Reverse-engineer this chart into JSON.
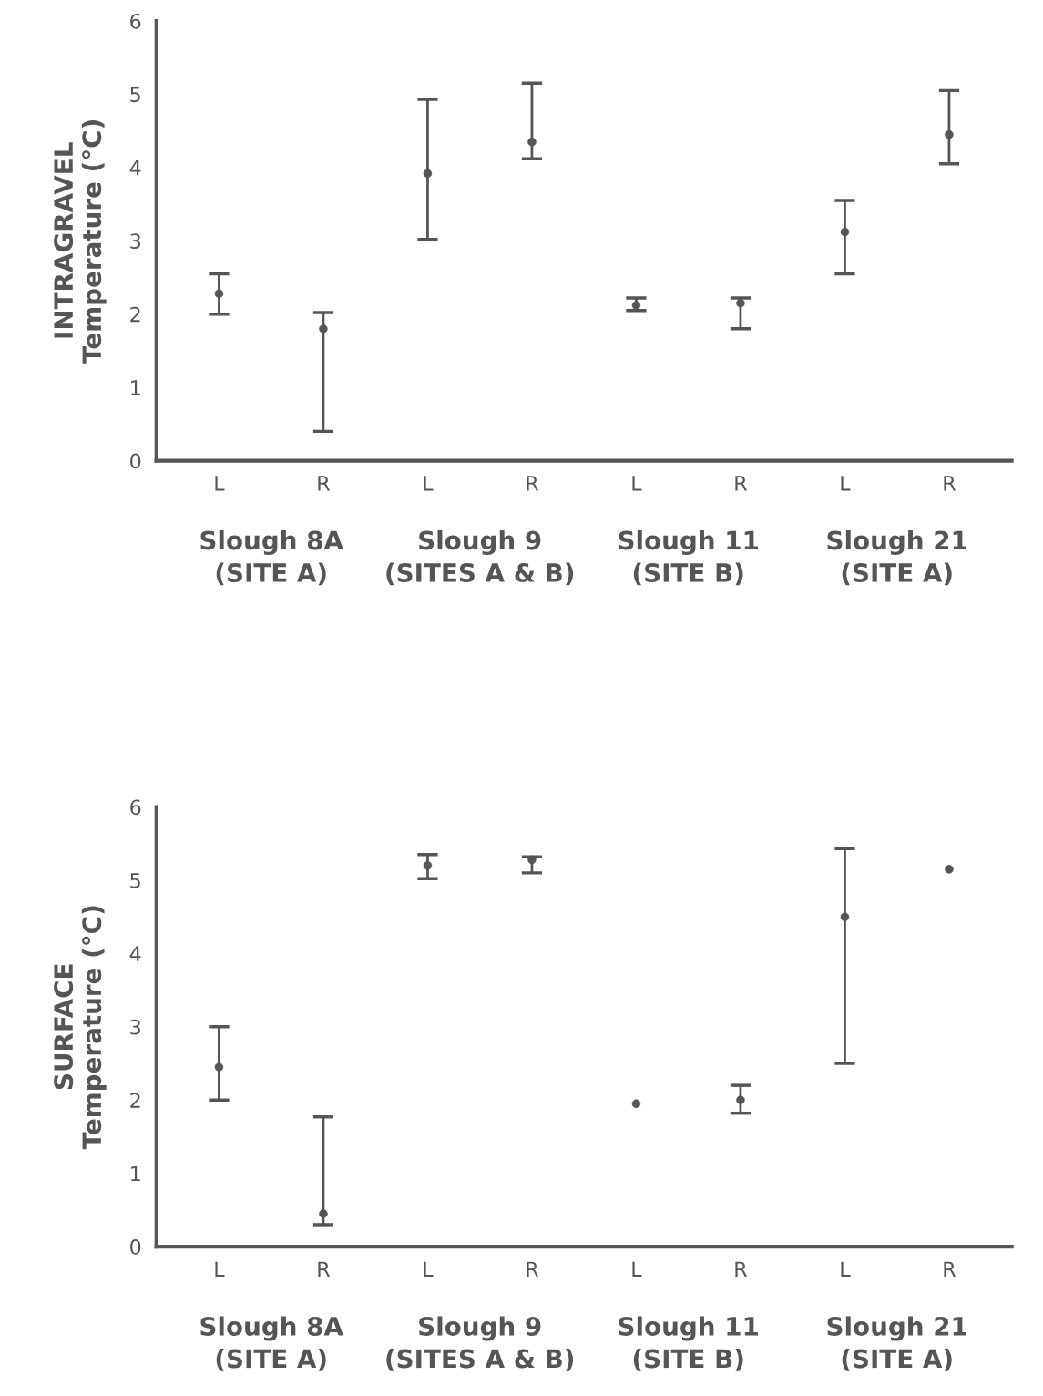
{
  "chart_data": [
    {
      "type": "scatter",
      "ylabel": "INTRAGRAVEL\nTemperature (°C)",
      "categories": [
        "L",
        "R",
        "L",
        "R",
        "L",
        "R",
        "L",
        "R"
      ],
      "values": [
        2.28,
        1.8,
        3.92,
        4.35,
        2.12,
        2.15,
        3.12,
        4.45
      ],
      "errors": [
        [
          2.0,
          2.55
        ],
        [
          0.4,
          2.02
        ],
        [
          3.02,
          4.93
        ],
        [
          4.12,
          5.15
        ],
        [
          2.05,
          2.22
        ],
        [
          1.8,
          2.22
        ],
        [
          2.55,
          3.55
        ],
        [
          4.05,
          5.05
        ]
      ],
      "color": "#555555",
      "marker": "circle",
      "ylim": [
        0,
        6
      ],
      "yticks": [
        0,
        1,
        2,
        3,
        4,
        5,
        6
      ],
      "grid": false,
      "legend": false,
      "annotations": [
        "Slough 8A\n(SITE A)",
        "Slough 9\n(SITES A & B)",
        "Slough 11\n(SITE B)",
        "Slough 21\n(SITE A)"
      ]
    },
    {
      "type": "scatter",
      "ylabel": "SURFACE\nTemperature (°C)",
      "categories": [
        "L",
        "R",
        "L",
        "R",
        "L",
        "R",
        "L",
        "R"
      ],
      "values": [
        2.45,
        0.45,
        5.2,
        5.28,
        1.95,
        2.0,
        4.5,
        5.15
      ],
      "errors": [
        [
          2.0,
          3.0
        ],
        [
          0.3,
          1.77
        ],
        [
          5.02,
          5.35
        ],
        [
          5.1,
          5.32
        ],
        null,
        [
          1.82,
          2.2
        ],
        [
          2.5,
          5.43
        ],
        null
      ],
      "color": "#555555",
      "marker": "circle",
      "ylim": [
        0,
        6
      ],
      "yticks": [
        0,
        1,
        2,
        3,
        4,
        5,
        6
      ],
      "grid": false,
      "legend": false,
      "annotations": [
        "Slough 8A\n(SITE A)",
        "Slough 9\n(SITES A & B)",
        "Slough 11\n(SITE B)",
        "Slough 21\n(SITE A)"
      ]
    }
  ]
}
